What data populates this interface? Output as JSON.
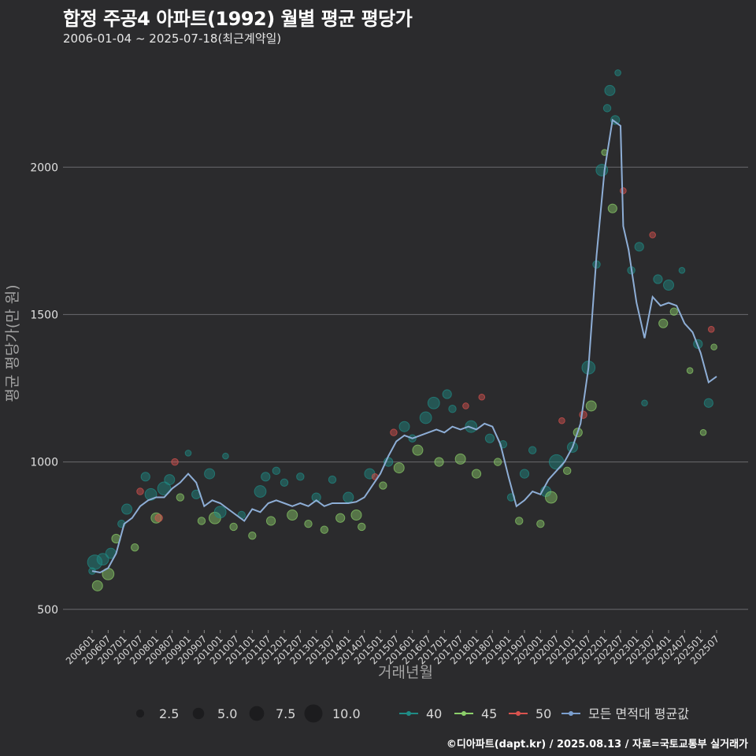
{
  "header": {
    "title": "합정 주공4 아파트(1992) 월별 평균 평당가",
    "subtitle": "2006-01-04 ~ 2025-07-18(최근계약일)"
  },
  "footer": {
    "source": "©디아파트(dapt.kr) / 2025.08.13 / 자료=국토교통부 실거래가"
  },
  "chart_data": {
    "type": "scatter",
    "xlabel": "거래년월",
    "ylabel": "평균 평당가(만 원)",
    "ylim": [
      430,
      2380
    ],
    "y_ticks": [
      500,
      1000,
      1500,
      2000
    ],
    "x_tick_labels": [
      "200601",
      "200607",
      "200701",
      "200707",
      "200801",
      "200807",
      "200901",
      "200907",
      "201001",
      "201007",
      "201101",
      "201107",
      "201201",
      "201207",
      "201301",
      "201307",
      "201401",
      "201407",
      "201501",
      "201507",
      "201601",
      "201607",
      "201701",
      "201707",
      "201801",
      "201807",
      "201901",
      "201907",
      "202001",
      "202007",
      "202101",
      "202107",
      "202201",
      "202207",
      "202301",
      "202307",
      "202401",
      "202407",
      "202501",
      "202507"
    ],
    "grid": "horizontal",
    "size_legend": {
      "labels": [
        "2.5",
        "5.0",
        "7.5",
        "10.0"
      ],
      "values": [
        2.5,
        5.0,
        7.5,
        10.0
      ]
    },
    "color_legend": [
      {
        "label": "40",
        "color": "#1f8c86"
      },
      {
        "label": "45",
        "color": "#8ccf6a"
      },
      {
        "label": "50",
        "color": "#d9534f"
      },
      {
        "label": "모든 면적대 평균값",
        "color": "#7b9fcf"
      }
    ],
    "average_line": {
      "color": "#8eaed6",
      "points": [
        [
          "2006-01",
          630
        ],
        [
          "2006-04",
          625
        ],
        [
          "2006-07",
          640
        ],
        [
          "2006-10",
          690
        ],
        [
          "2007-01",
          790
        ],
        [
          "2007-04",
          810
        ],
        [
          "2007-07",
          850
        ],
        [
          "2007-10",
          870
        ],
        [
          "2008-01",
          880
        ],
        [
          "2008-04",
          880
        ],
        [
          "2008-07",
          910
        ],
        [
          "2008-10",
          930
        ],
        [
          "2009-01",
          960
        ],
        [
          "2009-04",
          930
        ],
        [
          "2009-07",
          850
        ],
        [
          "2009-10",
          870
        ],
        [
          "2010-01",
          860
        ],
        [
          "2010-04",
          840
        ],
        [
          "2010-07",
          820
        ],
        [
          "2010-10",
          800
        ],
        [
          "2011-01",
          840
        ],
        [
          "2011-04",
          830
        ],
        [
          "2011-07",
          860
        ],
        [
          "2011-10",
          870
        ],
        [
          "2012-01",
          860
        ],
        [
          "2012-04",
          850
        ],
        [
          "2012-07",
          860
        ],
        [
          "2012-10",
          850
        ],
        [
          "2013-01",
          870
        ],
        [
          "2013-04",
          850
        ],
        [
          "2013-07",
          860
        ],
        [
          "2013-10",
          860
        ],
        [
          "2014-01",
          860
        ],
        [
          "2014-04",
          865
        ],
        [
          "2014-07",
          880
        ],
        [
          "2014-10",
          920
        ],
        [
          "2015-01",
          960
        ],
        [
          "2015-04",
          1020
        ],
        [
          "2015-07",
          1070
        ],
        [
          "2015-10",
          1090
        ],
        [
          "2016-01",
          1080
        ],
        [
          "2016-04",
          1090
        ],
        [
          "2016-07",
          1100
        ],
        [
          "2016-10",
          1110
        ],
        [
          "2017-01",
          1100
        ],
        [
          "2017-04",
          1120
        ],
        [
          "2017-07",
          1110
        ],
        [
          "2017-10",
          1120
        ],
        [
          "2018-01",
          1110
        ],
        [
          "2018-04",
          1130
        ],
        [
          "2018-07",
          1120
        ],
        [
          "2018-10",
          1060
        ],
        [
          "2019-01",
          950
        ],
        [
          "2019-04",
          850
        ],
        [
          "2019-07",
          870
        ],
        [
          "2019-10",
          900
        ],
        [
          "2020-01",
          890
        ],
        [
          "2020-04",
          940
        ],
        [
          "2020-07",
          970
        ],
        [
          "2020-10",
          1000
        ],
        [
          "2021-01",
          1050
        ],
        [
          "2021-04",
          1130
        ],
        [
          "2021-07",
          1320
        ],
        [
          "2021-10",
          1700
        ],
        [
          "2022-01",
          1990
        ],
        [
          "2022-04",
          2160
        ],
        [
          "2022-07",
          2140
        ],
        [
          "2022-08",
          1800
        ],
        [
          "2022-10",
          1720
        ],
        [
          "2023-01",
          1540
        ],
        [
          "2023-04",
          1420
        ],
        [
          "2023-07",
          1560
        ],
        [
          "2023-10",
          1530
        ],
        [
          "2024-01",
          1540
        ],
        [
          "2024-04",
          1530
        ],
        [
          "2024-07",
          1470
        ],
        [
          "2024-10",
          1440
        ],
        [
          "2025-01",
          1370
        ],
        [
          "2025-04",
          1270
        ],
        [
          "2025-07",
          1290
        ]
      ]
    },
    "points": [
      [
        "2006-01",
        40,
        630,
        2.5
      ],
      [
        "2006-02",
        40,
        660,
        8
      ],
      [
        "2006-03",
        45,
        580,
        5
      ],
      [
        "2006-05",
        40,
        670,
        6
      ],
      [
        "2006-07",
        45,
        620,
        6
      ],
      [
        "2006-08",
        40,
        690,
        5
      ],
      [
        "2006-10",
        45,
        740,
        4
      ],
      [
        "2006-12",
        40,
        790,
        3
      ],
      [
        "2007-02",
        40,
        840,
        5
      ],
      [
        "2007-05",
        45,
        710,
        3
      ],
      [
        "2007-07",
        50,
        900,
        2.5
      ],
      [
        "2007-09",
        40,
        950,
        4
      ],
      [
        "2007-11",
        40,
        890,
        6
      ],
      [
        "2008-01",
        45,
        810,
        5
      ],
      [
        "2008-02",
        50,
        810,
        3
      ],
      [
        "2008-04",
        40,
        910,
        7
      ],
      [
        "2008-06",
        40,
        940,
        5
      ],
      [
        "2008-08",
        50,
        1000,
        2.5
      ],
      [
        "2008-10",
        45,
        880,
        3
      ],
      [
        "2009-01",
        40,
        1030,
        2
      ],
      [
        "2009-04",
        40,
        890,
        4
      ],
      [
        "2009-06",
        45,
        800,
        3
      ],
      [
        "2009-09",
        40,
        960,
        5
      ],
      [
        "2009-11",
        45,
        810,
        6
      ],
      [
        "2010-01",
        40,
        830,
        6
      ],
      [
        "2010-03",
        40,
        1020,
        2
      ],
      [
        "2010-06",
        45,
        780,
        3
      ],
      [
        "2010-09",
        40,
        820,
        3
      ],
      [
        "2011-01",
        45,
        750,
        3
      ],
      [
        "2011-04",
        40,
        900,
        6
      ],
      [
        "2011-06",
        40,
        950,
        4
      ],
      [
        "2011-08",
        45,
        800,
        4
      ],
      [
        "2011-10",
        40,
        970,
        3
      ],
      [
        "2012-01",
        40,
        930,
        3
      ],
      [
        "2012-04",
        45,
        820,
        5
      ],
      [
        "2012-07",
        40,
        950,
        3
      ],
      [
        "2012-10",
        45,
        790,
        3
      ],
      [
        "2013-01",
        40,
        880,
        4
      ],
      [
        "2013-04",
        45,
        770,
        3
      ],
      [
        "2013-07",
        40,
        940,
        3
      ],
      [
        "2013-10",
        45,
        810,
        4
      ],
      [
        "2014-01",
        40,
        880,
        5
      ],
      [
        "2014-04",
        45,
        820,
        5
      ],
      [
        "2014-06",
        45,
        780,
        3
      ],
      [
        "2014-09",
        40,
        960,
        5
      ],
      [
        "2014-11",
        50,
        950,
        2
      ],
      [
        "2015-02",
        45,
        920,
        3
      ],
      [
        "2015-04",
        40,
        1000,
        4
      ],
      [
        "2015-06",
        50,
        1100,
        2.5
      ],
      [
        "2015-08",
        45,
        980,
        5
      ],
      [
        "2015-10",
        40,
        1120,
        5
      ],
      [
        "2016-01",
        40,
        1080,
        3
      ],
      [
        "2016-03",
        45,
        1040,
        5
      ],
      [
        "2016-06",
        40,
        1150,
        6
      ],
      [
        "2016-09",
        40,
        1200,
        6
      ],
      [
        "2016-11",
        45,
        1000,
        4
      ],
      [
        "2017-02",
        40,
        1230,
        4
      ],
      [
        "2017-04",
        40,
        1180,
        3
      ],
      [
        "2017-07",
        45,
        1010,
        5
      ],
      [
        "2017-09",
        50,
        1190,
        2
      ],
      [
        "2017-11",
        40,
        1120,
        6
      ],
      [
        "2018-01",
        45,
        960,
        4
      ],
      [
        "2018-03",
        50,
        1220,
        2
      ],
      [
        "2018-06",
        40,
        1080,
        4
      ],
      [
        "2018-09",
        45,
        1000,
        3
      ],
      [
        "2018-11",
        40,
        1060,
        3
      ],
      [
        "2019-02",
        40,
        880,
        3
      ],
      [
        "2019-05",
        45,
        800,
        3
      ],
      [
        "2019-07",
        40,
        960,
        4
      ],
      [
        "2019-10",
        40,
        1040,
        3
      ],
      [
        "2020-01",
        45,
        790,
        3
      ],
      [
        "2020-03",
        40,
        900,
        5
      ],
      [
        "2020-05",
        45,
        880,
        6
      ],
      [
        "2020-07",
        40,
        1000,
        8
      ],
      [
        "2020-09",
        50,
        1140,
        2
      ],
      [
        "2020-11",
        45,
        970,
        3
      ],
      [
        "2021-01",
        40,
        1050,
        5
      ],
      [
        "2021-03",
        45,
        1100,
        4
      ],
      [
        "2021-05",
        50,
        1160,
        3
      ],
      [
        "2021-07",
        40,
        1320,
        7
      ],
      [
        "2021-08",
        45,
        1190,
        5
      ],
      [
        "2021-10",
        40,
        1670,
        3
      ],
      [
        "2021-12",
        40,
        1990,
        6
      ],
      [
        "2022-01",
        45,
        2050,
        2
      ],
      [
        "2022-02",
        40,
        2200,
        3
      ],
      [
        "2022-03",
        40,
        2260,
        5
      ],
      [
        "2022-04",
        45,
        1860,
        4
      ],
      [
        "2022-05",
        40,
        2160,
        4
      ],
      [
        "2022-06",
        40,
        2320,
        2
      ],
      [
        "2022-08",
        50,
        1920,
        2
      ],
      [
        "2022-11",
        40,
        1650,
        3
      ],
      [
        "2023-02",
        40,
        1730,
        4
      ],
      [
        "2023-04",
        40,
        1200,
        2
      ],
      [
        "2023-07",
        50,
        1770,
        2
      ],
      [
        "2023-09",
        40,
        1620,
        4
      ],
      [
        "2023-11",
        45,
        1470,
        4
      ],
      [
        "2024-01",
        40,
        1600,
        5
      ],
      [
        "2024-03",
        45,
        1510,
        3
      ],
      [
        "2024-06",
        40,
        1650,
        2
      ],
      [
        "2024-09",
        45,
        1310,
        2
      ],
      [
        "2024-12",
        40,
        1400,
        4
      ],
      [
        "2025-02",
        45,
        1100,
        2
      ],
      [
        "2025-04",
        40,
        1200,
        4
      ],
      [
        "2025-05",
        50,
        1450,
        2
      ],
      [
        "2025-06",
        45,
        1390,
        2
      ]
    ]
  }
}
